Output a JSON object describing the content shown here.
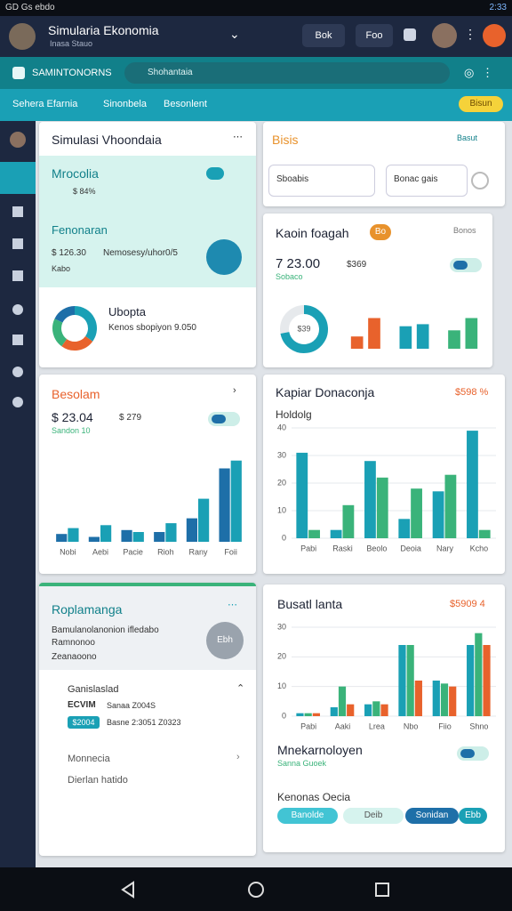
{
  "status_bar": {
    "left": "GD Gs ebdo",
    "time": "2:33"
  },
  "header": {
    "title": "Simularia Ekonomia",
    "subtitle": "Inasa Stauo",
    "buttons": [
      "Bok",
      "Foo"
    ]
  },
  "toolbar": {
    "title": "SAMINTONORNS",
    "search": "Shohantaia"
  },
  "tabs": {
    "items": [
      "Sehera Efarnia",
      "Sinonbela",
      "Besonlent"
    ],
    "badge": "Bisun"
  },
  "card_simulation": {
    "title": "Simulasi Vhoondaia",
    "panel": {
      "title": "Mrocolia",
      "value": "$ 84%",
      "subtitle": "Fenonaran",
      "amount": "$ 126.30",
      "detail": "Nemosesy/uhor0/5",
      "note": "Kabo"
    },
    "donut": {
      "title": "Ubopta",
      "text": "Kenos sbopiyon 9.050",
      "values": [
        35,
        25,
        22,
        18
      ],
      "colors": [
        "#1aa0b5",
        "#e8622c",
        "#3ab37a",
        "#1e6fa8"
      ]
    }
  },
  "card_basis": {
    "title": "Bisis",
    "link": "Basut",
    "fields": [
      "Sboabis",
      "Bonac gais"
    ]
  },
  "card_kaoin": {
    "title": "Kaoin foagah",
    "badge": "Bo",
    "link": "Bonos",
    "value": "7 23.00",
    "delta": "$369",
    "note": "Sobaco",
    "donut": {
      "label": "$39",
      "values": [
        72,
        28
      ],
      "colors": [
        "#1aa0b5",
        "#e6e9ec"
      ]
    },
    "chart": {
      "ylim": [
        0,
        40
      ],
      "values": [
        12,
        30,
        22,
        24,
        18,
        30
      ],
      "colors": [
        "#e8622c",
        "#e8622c",
        "#1aa0b5",
        "#1aa0b5",
        "#3ab37a",
        "#3ab37a"
      ]
    }
  },
  "card_besolam": {
    "title": "Besolam",
    "value": "$ 23.04",
    "delta": "$ 279",
    "note": "Sandon 10",
    "chart": {
      "categories": [
        "Nobi",
        "Aebi",
        "Pacie",
        "Rioh",
        "Rany",
        "Foii"
      ],
      "ylim": [
        0,
        100
      ],
      "series": [
        {
          "color": "#1e6fa8",
          "values": [
            8,
            5,
            12,
            10,
            24,
            75
          ]
        },
        {
          "color": "#1aa0b5",
          "values": [
            14,
            17,
            10,
            19,
            44,
            83
          ]
        }
      ]
    }
  },
  "card_kapiar": {
    "title": "Kapiar Donaconja",
    "badge": "$598 %",
    "subtitle": "Holdolg",
    "chart": {
      "categories": [
        "Pabi",
        "Raski",
        "Beolo",
        "Deoia",
        "Nary",
        "Kcho"
      ],
      "ylim": [
        0,
        40
      ],
      "yticks": [
        0,
        10,
        20,
        30,
        40
      ],
      "series": [
        {
          "color": "#1aa0b5",
          "values": [
            31,
            3,
            28,
            7,
            17,
            39
          ]
        },
        {
          "color": "#3ab37a",
          "values": [
            3,
            12,
            22,
            18,
            23,
            3
          ]
        }
      ]
    }
  },
  "card_roplamanga": {
    "title": "Roplamanga",
    "lines": [
      "Bamulanolanonion ifledabo",
      "Ramnonoo",
      "Zeanaoono"
    ],
    "badge": "Ebh",
    "item": {
      "title": "Ganislaslad",
      "code": "ECVIM",
      "detail": "Sanaa Z004S",
      "tag": "$2004",
      "dates": "Basne 2:3051 Z0323"
    },
    "links": [
      "Monnecia",
      "Dierlan hatido"
    ]
  },
  "card_busatl": {
    "title": "Busatl lanta",
    "badge": "$5909 4",
    "chart": {
      "categories": [
        "Pabi",
        "Aaki",
        "Lrea",
        "Nbo",
        "Fiio",
        "Shno"
      ],
      "ylim": [
        0,
        30
      ],
      "yticks": [
        0,
        10,
        20,
        30
      ],
      "series": [
        {
          "color": "#1aa0b5",
          "values": [
            1,
            3,
            4,
            24,
            12,
            24
          ]
        },
        {
          "color": "#3ab37a",
          "values": [
            1,
            10,
            5,
            24,
            11,
            28
          ]
        },
        {
          "color": "#e8622c",
          "values": [
            1,
            4,
            4,
            12,
            10,
            24
          ]
        }
      ]
    },
    "footer": {
      "title": "Mnekarnoloyen",
      "subtitle": "Sanna Guoek",
      "section": "Kenonas Oecia",
      "pills": [
        "Banolde",
        "Deib",
        "Sonidan",
        "Ebb"
      ]
    }
  }
}
